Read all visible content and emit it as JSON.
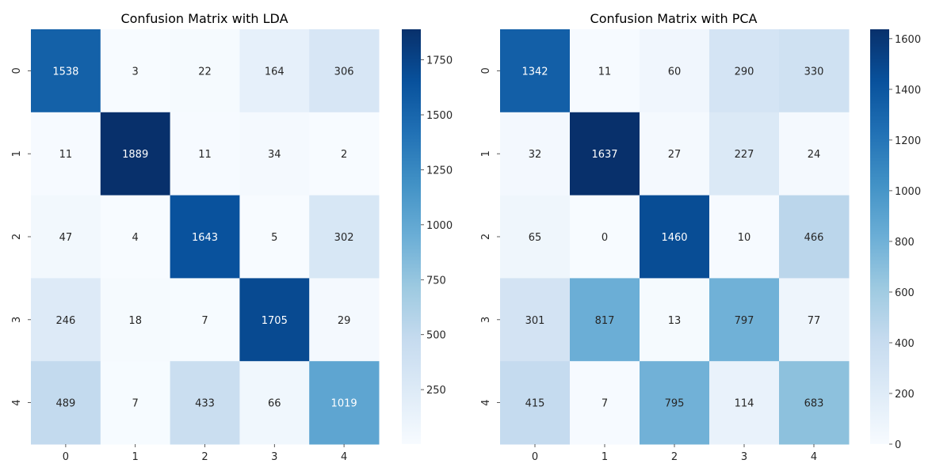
{
  "chart_data": [
    {
      "type": "heatmap",
      "title": "Confusion Matrix with LDA",
      "x_categories": [
        "0",
        "1",
        "2",
        "3",
        "4"
      ],
      "y_categories": [
        "0",
        "1",
        "2",
        "3",
        "4"
      ],
      "values": [
        [
          1538,
          3,
          22,
          164,
          306
        ],
        [
          11,
          1889,
          11,
          34,
          2
        ],
        [
          47,
          4,
          1643,
          5,
          302
        ],
        [
          246,
          18,
          7,
          1705,
          29
        ],
        [
          489,
          7,
          433,
          66,
          1019
        ]
      ],
      "colorscale": "Blues",
      "colorbar_range": [
        2,
        1889
      ],
      "colorbar_ticks": [
        250,
        500,
        750,
        1000,
        1250,
        1500,
        1750
      ]
    },
    {
      "type": "heatmap",
      "title": "Confusion Matrix with PCA",
      "x_categories": [
        "0",
        "1",
        "2",
        "3",
        "4"
      ],
      "y_categories": [
        "0",
        "1",
        "2",
        "3",
        "4"
      ],
      "values": [
        [
          1342,
          11,
          60,
          290,
          330
        ],
        [
          32,
          1637,
          27,
          227,
          24
        ],
        [
          65,
          0,
          1460,
          10,
          466
        ],
        [
          301,
          817,
          13,
          797,
          77
        ],
        [
          415,
          7,
          795,
          114,
          683
        ]
      ],
      "colorscale": "Blues",
      "colorbar_range": [
        0,
        1637
      ],
      "colorbar_ticks": [
        0,
        200,
        400,
        600,
        800,
        1000,
        1200,
        1400,
        1600
      ]
    }
  ]
}
